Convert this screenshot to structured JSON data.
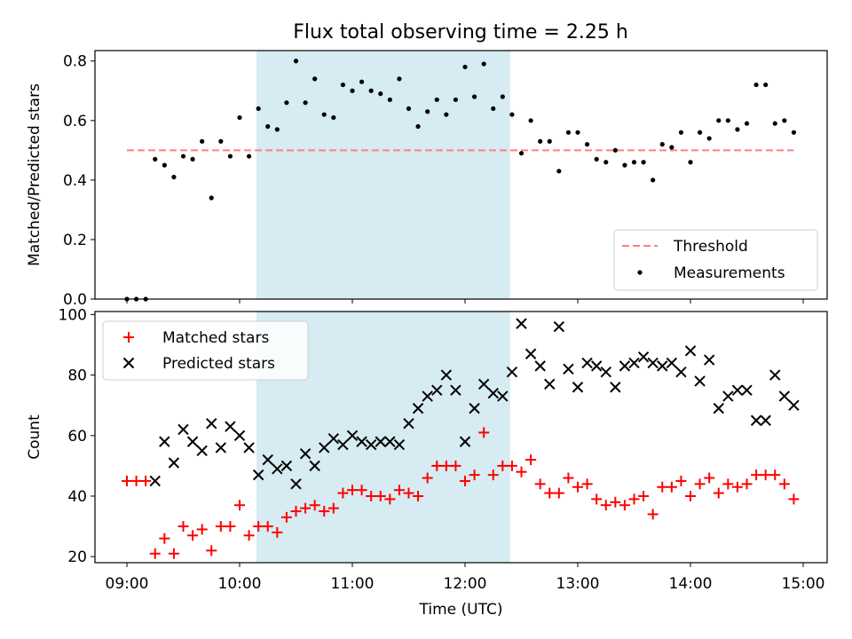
{
  "chart_data": [
    {
      "type": "scatter",
      "title": "Flux total observing time = 2.25 h",
      "ylabel": "Matched/Predicted stars",
      "ylim": [
        0,
        0.835
      ],
      "yticks": [
        "0.0",
        "0.2",
        "0.4",
        "0.6",
        "0.8"
      ],
      "highlight_span": [
        "10:09",
        "12:24"
      ],
      "legend_position": "lower-right",
      "threshold": {
        "name": "Threshold",
        "value": 0.5,
        "x_range": [
          "09:00",
          "14:55"
        ],
        "color": "#ff7f7f"
      },
      "series": [
        {
          "name": "Measurements",
          "color": "#000000",
          "points": [
            [
              "09:00",
              0.0
            ],
            [
              "09:05",
              0.0
            ],
            [
              "09:10",
              0.0
            ],
            [
              "09:15",
              0.47
            ],
            [
              "09:20",
              0.45
            ],
            [
              "09:25",
              0.41
            ],
            [
              "09:30",
              0.48
            ],
            [
              "09:35",
              0.47
            ],
            [
              "09:40",
              0.53
            ],
            [
              "09:45",
              0.34
            ],
            [
              "09:50",
              0.53
            ],
            [
              "09:55",
              0.48
            ],
            [
              "10:00",
              0.61
            ],
            [
              "10:05",
              0.48
            ],
            [
              "10:10",
              0.64
            ],
            [
              "10:15",
              0.58
            ],
            [
              "10:20",
              0.57
            ],
            [
              "10:25",
              0.66
            ],
            [
              "10:30",
              0.8
            ],
            [
              "10:35",
              0.66
            ],
            [
              "10:40",
              0.74
            ],
            [
              "10:45",
              0.62
            ],
            [
              "10:50",
              0.61
            ],
            [
              "10:55",
              0.72
            ],
            [
              "11:00",
              0.7
            ],
            [
              "11:05",
              0.73
            ],
            [
              "11:10",
              0.7
            ],
            [
              "11:15",
              0.69
            ],
            [
              "11:20",
              0.67
            ],
            [
              "11:25",
              0.74
            ],
            [
              "11:30",
              0.64
            ],
            [
              "11:35",
              0.58
            ],
            [
              "11:40",
              0.63
            ],
            [
              "11:45",
              0.67
            ],
            [
              "11:50",
              0.62
            ],
            [
              "11:55",
              0.67
            ],
            [
              "12:00",
              0.78
            ],
            [
              "12:05",
              0.68
            ],
            [
              "12:10",
              0.79
            ],
            [
              "12:15",
              0.64
            ],
            [
              "12:20",
              0.68
            ],
            [
              "12:25",
              0.62
            ],
            [
              "12:30",
              0.49
            ],
            [
              "12:35",
              0.6
            ],
            [
              "12:40",
              0.53
            ],
            [
              "12:45",
              0.53
            ],
            [
              "12:50",
              0.43
            ],
            [
              "12:55",
              0.56
            ],
            [
              "13:00",
              0.56
            ],
            [
              "13:05",
              0.52
            ],
            [
              "13:10",
              0.47
            ],
            [
              "13:15",
              0.46
            ],
            [
              "13:20",
              0.5
            ],
            [
              "13:25",
              0.45
            ],
            [
              "13:30",
              0.46
            ],
            [
              "13:35",
              0.46
            ],
            [
              "13:40",
              0.4
            ],
            [
              "13:45",
              0.52
            ],
            [
              "13:50",
              0.51
            ],
            [
              "13:55",
              0.56
            ],
            [
              "14:00",
              0.46
            ],
            [
              "14:05",
              0.56
            ],
            [
              "14:10",
              0.54
            ],
            [
              "14:15",
              0.6
            ],
            [
              "14:20",
              0.6
            ],
            [
              "14:25",
              0.57
            ],
            [
              "14:30",
              0.59
            ],
            [
              "14:35",
              0.72
            ],
            [
              "14:40",
              0.72
            ],
            [
              "14:45",
              0.59
            ],
            [
              "14:50",
              0.6
            ],
            [
              "14:55",
              0.56
            ]
          ]
        }
      ]
    },
    {
      "type": "scatter",
      "xlabel": "Time (UTC)",
      "ylabel": "Count",
      "ylim": [
        18,
        101
      ],
      "yticks": [
        "20",
        "40",
        "60",
        "80",
        "100"
      ],
      "xticks": [
        "09:00",
        "10:00",
        "11:00",
        "12:00",
        "13:00",
        "14:00",
        "15:00"
      ],
      "highlight_span": [
        "10:09",
        "12:24"
      ],
      "legend_position": "upper-left",
      "series": [
        {
          "name": "Matched stars",
          "marker": "plus",
          "color": "#ff0000",
          "points": [
            [
              "09:00",
              45
            ],
            [
              "09:05",
              45
            ],
            [
              "09:10",
              45
            ],
            [
              "09:15",
              21
            ],
            [
              "09:20",
              26
            ],
            [
              "09:25",
              21
            ],
            [
              "09:30",
              30
            ],
            [
              "09:35",
              27
            ],
            [
              "09:40",
              29
            ],
            [
              "09:45",
              22
            ],
            [
              "09:50",
              30
            ],
            [
              "09:55",
              30
            ],
            [
              "10:00",
              37
            ],
            [
              "10:05",
              27
            ],
            [
              "10:10",
              30
            ],
            [
              "10:15",
              30
            ],
            [
              "10:20",
              28
            ],
            [
              "10:25",
              33
            ],
            [
              "10:30",
              35
            ],
            [
              "10:35",
              36
            ],
            [
              "10:40",
              37
            ],
            [
              "10:45",
              35
            ],
            [
              "10:50",
              36
            ],
            [
              "10:55",
              41
            ],
            [
              "11:00",
              42
            ],
            [
              "11:05",
              42
            ],
            [
              "11:10",
              40
            ],
            [
              "11:15",
              40
            ],
            [
              "11:20",
              39
            ],
            [
              "11:25",
              42
            ],
            [
              "11:30",
              41
            ],
            [
              "11:35",
              40
            ],
            [
              "11:40",
              46
            ],
            [
              "11:45",
              50
            ],
            [
              "11:50",
              50
            ],
            [
              "11:55",
              50
            ],
            [
              "12:00",
              45
            ],
            [
              "12:05",
              47
            ],
            [
              "12:10",
              61
            ],
            [
              "12:15",
              47
            ],
            [
              "12:20",
              50
            ],
            [
              "12:25",
              50
            ],
            [
              "12:30",
              48
            ],
            [
              "12:35",
              52
            ],
            [
              "12:40",
              44
            ],
            [
              "12:45",
              41
            ],
            [
              "12:50",
              41
            ],
            [
              "12:55",
              46
            ],
            [
              "13:00",
              43
            ],
            [
              "13:05",
              44
            ],
            [
              "13:10",
              39
            ],
            [
              "13:15",
              37
            ],
            [
              "13:20",
              38
            ],
            [
              "13:25",
              37
            ],
            [
              "13:30",
              39
            ],
            [
              "13:35",
              40
            ],
            [
              "13:40",
              34
            ],
            [
              "13:45",
              43
            ],
            [
              "13:50",
              43
            ],
            [
              "13:55",
              45
            ],
            [
              "14:00",
              40
            ],
            [
              "14:05",
              44
            ],
            [
              "14:10",
              46
            ],
            [
              "14:15",
              41
            ],
            [
              "14:20",
              44
            ],
            [
              "14:25",
              43
            ],
            [
              "14:30",
              44
            ],
            [
              "14:35",
              47
            ],
            [
              "14:40",
              47
            ],
            [
              "14:45",
              47
            ],
            [
              "14:50",
              44
            ],
            [
              "14:55",
              39
            ]
          ]
        },
        {
          "name": "Predicted stars",
          "marker": "x",
          "color": "#000000",
          "points": [
            [
              "09:15",
              45
            ],
            [
              "09:20",
              58
            ],
            [
              "09:25",
              51
            ],
            [
              "09:30",
              62
            ],
            [
              "09:35",
              58
            ],
            [
              "09:40",
              55
            ],
            [
              "09:45",
              64
            ],
            [
              "09:50",
              56
            ],
            [
              "09:55",
              63
            ],
            [
              "10:00",
              60
            ],
            [
              "10:05",
              56
            ],
            [
              "10:10",
              47
            ],
            [
              "10:15",
              52
            ],
            [
              "10:20",
              49
            ],
            [
              "10:25",
              50
            ],
            [
              "10:30",
              44
            ],
            [
              "10:35",
              54
            ],
            [
              "10:40",
              50
            ],
            [
              "10:45",
              56
            ],
            [
              "10:50",
              59
            ],
            [
              "10:55",
              57
            ],
            [
              "11:00",
              60
            ],
            [
              "11:05",
              58
            ],
            [
              "11:10",
              57
            ],
            [
              "11:15",
              58
            ],
            [
              "11:20",
              58
            ],
            [
              "11:25",
              57
            ],
            [
              "11:30",
              64
            ],
            [
              "11:35",
              69
            ],
            [
              "11:40",
              73
            ],
            [
              "11:45",
              75
            ],
            [
              "11:50",
              80
            ],
            [
              "11:55",
              75
            ],
            [
              "12:00",
              58
            ],
            [
              "12:05",
              69
            ],
            [
              "12:10",
              77
            ],
            [
              "12:15",
              74
            ],
            [
              "12:20",
              73
            ],
            [
              "12:25",
              81
            ],
            [
              "12:30",
              97
            ],
            [
              "12:35",
              87
            ],
            [
              "12:40",
              83
            ],
            [
              "12:45",
              77
            ],
            [
              "12:50",
              96
            ],
            [
              "12:55",
              82
            ],
            [
              "13:00",
              76
            ],
            [
              "13:05",
              84
            ],
            [
              "13:10",
              83
            ],
            [
              "13:15",
              81
            ],
            [
              "13:20",
              76
            ],
            [
              "13:25",
              83
            ],
            [
              "13:30",
              84
            ],
            [
              "13:35",
              86
            ],
            [
              "13:40",
              84
            ],
            [
              "13:45",
              83
            ],
            [
              "13:50",
              84
            ],
            [
              "13:55",
              81
            ],
            [
              "14:00",
              88
            ],
            [
              "14:05",
              78
            ],
            [
              "14:10",
              85
            ],
            [
              "14:15",
              69
            ],
            [
              "14:20",
              73
            ],
            [
              "14:25",
              75
            ],
            [
              "14:30",
              75
            ],
            [
              "14:35",
              65
            ],
            [
              "14:40",
              65
            ],
            [
              "14:45",
              80
            ],
            [
              "14:50",
              73
            ],
            [
              "14:55",
              70
            ]
          ]
        }
      ]
    }
  ]
}
